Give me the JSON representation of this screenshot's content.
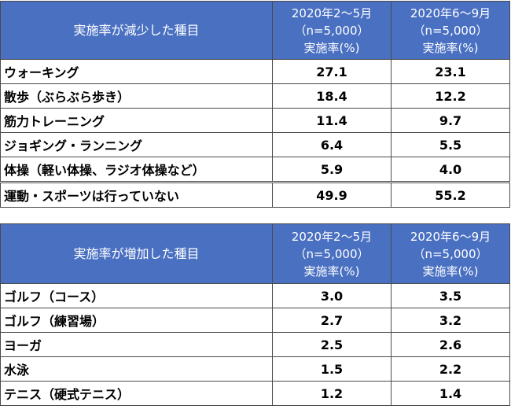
{
  "tables": [
    {
      "title": "実施率が減少した種目",
      "col1": {
        "period": "2020年2～5月",
        "n": "（n=5,000）",
        "metric": "実施率(%)"
      },
      "col2": {
        "period": "2020年6～9月",
        "n": "（n=5,000）",
        "metric": "実施率(%)"
      },
      "rows": [
        {
          "label": "ウォーキング",
          "v1": "27.1",
          "v2": "23.1"
        },
        {
          "label": "散歩（ぶらぶら歩き）",
          "v1": "18.4",
          "v2": "12.2"
        },
        {
          "label": "筋力トレーニング",
          "v1": "11.4",
          "v2": "9.7"
        },
        {
          "label": "ジョギング・ランニング",
          "v1": "6.4",
          "v2": "5.5"
        },
        {
          "label": "体操（軽い体操、ラジオ体操など）",
          "v1": "5.9",
          "v2": "4.0"
        },
        {
          "label": "運動・スポーツは行っていない",
          "v1": "49.9",
          "v2": "55.2"
        }
      ]
    },
    {
      "title": "実施率が増加した種目",
      "col1": {
        "period": "2020年2～5月",
        "n": "（n=5,000）",
        "metric": "実施率(%)"
      },
      "col2": {
        "period": "2020年6～9月",
        "n": "（n=5,000）",
        "metric": "実施率(%)"
      },
      "rows": [
        {
          "label": "ゴルフ（コース）",
          "v1": "3.0",
          "v2": "3.5"
        },
        {
          "label": "ゴルフ（練習場）",
          "v1": "2.7",
          "v2": "3.2"
        },
        {
          "label": "ヨーガ",
          "v1": "2.5",
          "v2": "2.6"
        },
        {
          "label": "水泳",
          "v1": "1.5",
          "v2": "2.2"
        },
        {
          "label": "テニス（硬式テニス）",
          "v1": "1.2",
          "v2": "1.4"
        }
      ]
    }
  ]
}
